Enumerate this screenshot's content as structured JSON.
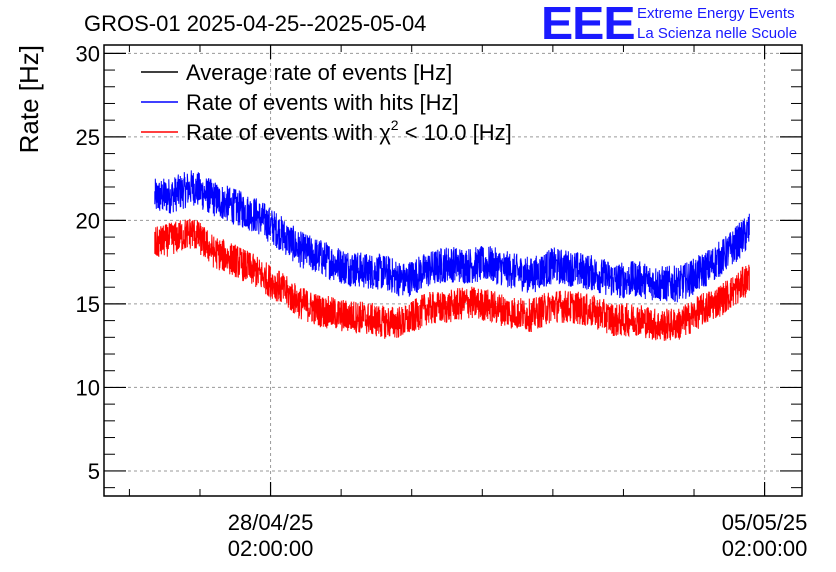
{
  "title": "GROS-01 2025-04-25--2025-05-04",
  "logo": {
    "mark": "EEE",
    "line1": "Extreme Energy Events",
    "line2": "La Scienza nelle Scuole",
    "color": "#1a1aff"
  },
  "chart_data": {
    "type": "line",
    "title": "GROS-01 2025-04-25--2025-05-04",
    "xlabel": "",
    "ylabel": "Rate [Hz]",
    "ylim": [
      3.5,
      30.5
    ],
    "y_ticks": [
      "5",
      "10",
      "15",
      "20",
      "25",
      "30"
    ],
    "y_tick_values": [
      5,
      10,
      15,
      20,
      25,
      30
    ],
    "x_range_days": [
      "2025-04-25",
      "2025-05-04"
    ],
    "x_ticks": [
      {
        "date": "28/04/25",
        "time": "02:00:00",
        "day": 3.0
      },
      {
        "date": "05/05/25",
        "time": "02:00:00",
        "day": 10.0
      }
    ],
    "x_axis_days": [
      0.64,
      10.53
    ],
    "grid": true,
    "legend_position": "top-left",
    "series": [
      {
        "name": "Average rate of events [Hz]",
        "legend_label": "Average rate of events [Hz]",
        "color": "#000000",
        "days": [],
        "values": []
      },
      {
        "name": "Rate of events with hits [Hz]",
        "legend_label": "Rate of events with hits [Hz]",
        "color": "#0000ff",
        "noise": 1.1,
        "days": [
          1.36,
          1.6,
          1.9,
          2.2,
          2.5,
          2.8,
          3.1,
          3.4,
          3.7,
          4.0,
          4.3,
          4.6,
          4.9,
          5.2,
          5.5,
          5.8,
          6.1,
          6.4,
          6.7,
          7.0,
          7.3,
          7.6,
          7.9,
          8.2,
          8.5,
          8.8,
          9.1,
          9.4,
          9.6,
          9.79
        ],
        "values": [
          21.4,
          21.5,
          22.0,
          21.3,
          20.8,
          20.3,
          19.4,
          18.3,
          17.8,
          17.3,
          17.0,
          16.9,
          16.4,
          17.0,
          17.4,
          17.3,
          17.4,
          17.0,
          16.7,
          17.3,
          17.1,
          16.8,
          16.4,
          16.5,
          16.2,
          16.2,
          16.9,
          17.8,
          18.6,
          19.4
        ]
      },
      {
        "name": "Rate of events with χ² < 10.0 [Hz]",
        "legend_label": "Rate of events with χ² < 10.0 [Hz]",
        "legend_prefix": "Rate of events with ",
        "legend_chi": "χ",
        "legend_sup": "2",
        "legend_suffix": " < 10.0 [Hz]",
        "color": "#ff0000",
        "noise": 1.0,
        "days": [
          1.36,
          1.6,
          1.9,
          2.2,
          2.5,
          2.8,
          3.1,
          3.4,
          3.7,
          4.0,
          4.3,
          4.6,
          4.9,
          5.2,
          5.5,
          5.8,
          6.1,
          6.4,
          6.7,
          7.0,
          7.3,
          7.6,
          7.9,
          8.2,
          8.5,
          8.8,
          9.1,
          9.4,
          9.6,
          9.79
        ],
        "values": [
          18.6,
          18.9,
          19.3,
          18.1,
          17.6,
          16.9,
          16.1,
          15.1,
          14.6,
          14.3,
          14.2,
          13.9,
          13.9,
          14.7,
          14.8,
          15.1,
          14.9,
          14.5,
          14.3,
          14.9,
          14.8,
          14.5,
          14.0,
          14.1,
          13.7,
          13.8,
          14.6,
          15.3,
          15.9,
          16.6
        ]
      }
    ]
  }
}
